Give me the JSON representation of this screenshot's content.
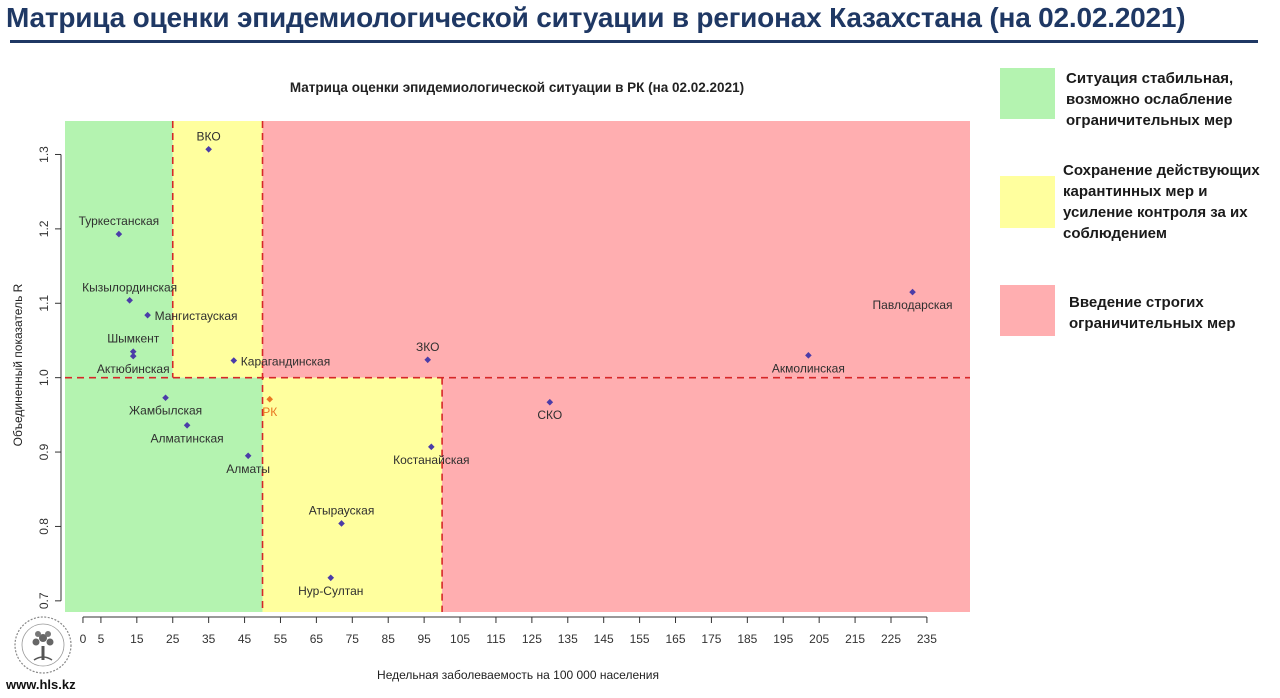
{
  "header": {
    "title": "Матрица оценки эпидемиологической ситуации в регионах Казахстана (на 02.02.2021)"
  },
  "chart_data": {
    "type": "scatter",
    "title": "Матрица оценки эпидемиологической ситуации в РК (на 02.02.2021)",
    "xlabel": "Недельная заболеваемость на 100 000 населения",
    "ylabel": "Объединенный показатель R",
    "xlim": [
      -5,
      247
    ],
    "ylim": [
      0.685,
      1.345
    ],
    "x_ticks": [
      0,
      5,
      15,
      25,
      35,
      45,
      55,
      65,
      75,
      85,
      95,
      105,
      115,
      125,
      135,
      145,
      155,
      165,
      175,
      185,
      195,
      205,
      215,
      225,
      235
    ],
    "y_ticks": [
      0.7,
      0.8,
      0.9,
      1.0,
      1.1,
      1.2,
      1.3
    ],
    "y_tick_labels": [
      "0.7",
      "0.8",
      "0.9",
      "1.0",
      "1.1",
      "1.2",
      "1.3"
    ],
    "zones": [
      {
        "x_from": -5,
        "x_to": 25,
        "y_from": 1.0,
        "y_to": 1.345,
        "color": "#b4f3b0"
      },
      {
        "x_from": 25,
        "x_to": 50,
        "y_from": 1.0,
        "y_to": 1.345,
        "color": "#ffff9e"
      },
      {
        "x_from": 50,
        "x_to": 247,
        "y_from": 1.0,
        "y_to": 1.345,
        "color": "#ffaeb0"
      },
      {
        "x_from": -5,
        "x_to": 50,
        "y_from": 0.685,
        "y_to": 1.0,
        "color": "#b4f3b0"
      },
      {
        "x_from": 50,
        "x_to": 100,
        "y_from": 0.685,
        "y_to": 1.0,
        "color": "#ffff9e"
      },
      {
        "x_from": 100,
        "x_to": 247,
        "y_from": 0.685,
        "y_to": 1.0,
        "color": "#ffaeb0"
      }
    ],
    "threshold_lines": [
      {
        "axis": "x",
        "value": 25,
        "y_from": 1.0,
        "y_to": 1.345
      },
      {
        "axis": "x",
        "value": 50,
        "y_from": 0.685,
        "y_to": 1.345
      },
      {
        "axis": "x",
        "value": 100,
        "y_from": 0.685,
        "y_to": 1.0
      },
      {
        "axis": "y",
        "value": 1.0,
        "x_from": -5,
        "x_to": 247
      }
    ],
    "threshold_color": "#d62728",
    "points": [
      {
        "label": "ВКО",
        "x": 35,
        "y": 1.307,
        "label_pos": "above",
        "color": "#4b3ca8"
      },
      {
        "label": "Туркестанская",
        "x": 10,
        "y": 1.193,
        "label_pos": "above",
        "color": "#4b3ca8"
      },
      {
        "label": "Кызылординская",
        "x": 13,
        "y": 1.104,
        "label_pos": "above",
        "color": "#4b3ca8"
      },
      {
        "label": "Мангистауская",
        "x": 18,
        "y": 1.084,
        "label_pos": "right",
        "color": "#4b3ca8"
      },
      {
        "label": "Шымкент",
        "x": 14,
        "y": 1.035,
        "label_pos": "above",
        "color": "#4b3ca8"
      },
      {
        "label": "Актюбинская",
        "x": 14,
        "y": 1.029,
        "label_pos": "below",
        "color": "#4b3ca8"
      },
      {
        "label": "Карагандинская",
        "x": 42,
        "y": 1.023,
        "label_pos": "right",
        "color": "#4b3ca8"
      },
      {
        "label": "ЗКО",
        "x": 96,
        "y": 1.024,
        "label_pos": "above",
        "color": "#4b3ca8"
      },
      {
        "label": "Акмолинская",
        "x": 202,
        "y": 1.03,
        "label_pos": "below",
        "color": "#4b3ca8"
      },
      {
        "label": "Павлодарская",
        "x": 231,
        "y": 1.115,
        "label_pos": "below",
        "color": "#4b3ca8"
      },
      {
        "label": "Жамбылская",
        "x": 23,
        "y": 0.973,
        "label_pos": "below",
        "color": "#4b3ca8"
      },
      {
        "label": "РК",
        "x": 52,
        "y": 0.971,
        "label_pos": "below",
        "color": "#e87722"
      },
      {
        "label": "СКО",
        "x": 130,
        "y": 0.967,
        "label_pos": "below",
        "color": "#4b3ca8"
      },
      {
        "label": "Алматинская",
        "x": 29,
        "y": 0.936,
        "label_pos": "below",
        "color": "#4b3ca8"
      },
      {
        "label": "Костанайская",
        "x": 97,
        "y": 0.907,
        "label_pos": "below",
        "color": "#4b3ca8"
      },
      {
        "label": "Алматы",
        "x": 46,
        "y": 0.895,
        "label_pos": "below",
        "color": "#4b3ca8"
      },
      {
        "label": "Атырауская",
        "x": 72,
        "y": 0.804,
        "label_pos": "above",
        "color": "#4b3ca8"
      },
      {
        "label": "Нур-Султан",
        "x": 69,
        "y": 0.731,
        "label_pos": "below",
        "color": "#4b3ca8"
      }
    ]
  },
  "legend": [
    {
      "color": "#b4f3b0",
      "text": "Ситуация стабильная,\nвозможно ослабление\nограничительных мер"
    },
    {
      "color": "#ffff9e",
      "text": "Сохранение действующих\nкарантинных мер и\nусиление контроля за их\nсоблюдением"
    },
    {
      "color": "#ffaeb0",
      "text": "Введение строгих\nограничительных мер"
    }
  ],
  "footer": {
    "url": "www.hls.kz"
  }
}
